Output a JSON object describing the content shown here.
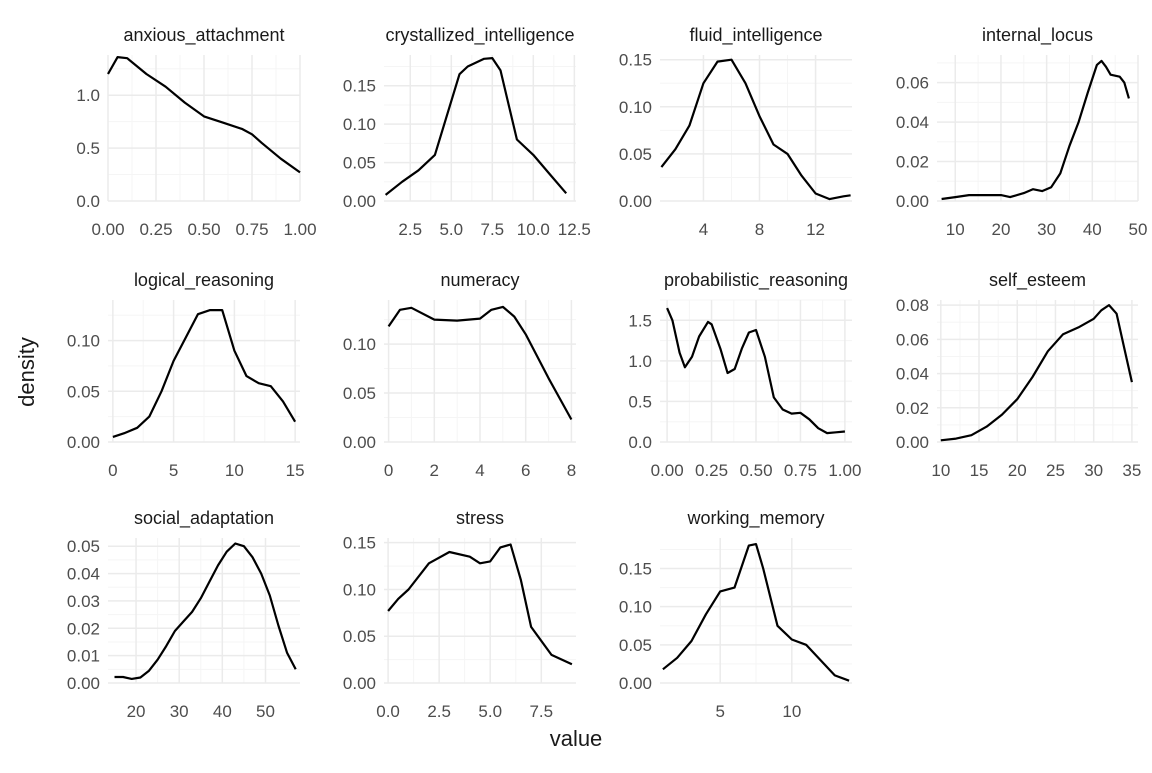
{
  "axis_titles": {
    "x": "value",
    "y": "density"
  },
  "colors": {
    "line": "#000000",
    "grid_major": "#ebebeb",
    "grid_minor": "#f5f5f5",
    "text": "#4d4d4d",
    "strip_text": "#1a1a1a"
  },
  "chart_data": [
    {
      "type": "line",
      "facet": "anxious_attachment",
      "xlim": [
        0,
        1
      ],
      "ylim": [
        0,
        1.38
      ],
      "xticks": [
        0,
        0.25,
        0.5,
        0.75,
        1
      ],
      "xtick_labels": [
        "0.00",
        "0.25",
        "0.50",
        "0.75",
        "1.00"
      ],
      "yticks": [
        0,
        0.5,
        1.0
      ],
      "ytick_labels": [
        "0.0",
        "0.5",
        "1.0"
      ],
      "x": [
        0,
        0.05,
        0.1,
        0.2,
        0.3,
        0.4,
        0.5,
        0.6,
        0.7,
        0.75,
        0.8,
        0.9,
        1.0
      ],
      "y": [
        1.2,
        1.36,
        1.35,
        1.2,
        1.08,
        0.93,
        0.8,
        0.74,
        0.68,
        0.63,
        0.55,
        0.4,
        0.27
      ]
    },
    {
      "type": "line",
      "facet": "crystallized_intelligence",
      "xlim": [
        0.9,
        12.6
      ],
      "ylim": [
        0,
        0.19
      ],
      "xticks": [
        2.5,
        5,
        7.5,
        10,
        12.5
      ],
      "xtick_labels": [
        "2.5",
        "5.0",
        "7.5",
        "10.0",
        "12.5"
      ],
      "yticks": [
        0,
        0.05,
        0.1,
        0.15
      ],
      "ytick_labels": [
        "0.00",
        "0.05",
        "0.10",
        "0.15"
      ],
      "x": [
        1,
        2,
        3,
        4,
        5,
        5.5,
        6,
        7,
        7.5,
        8,
        9,
        10,
        11,
        12
      ],
      "y": [
        0.008,
        0.025,
        0.04,
        0.06,
        0.13,
        0.165,
        0.175,
        0.185,
        0.186,
        0.17,
        0.08,
        0.06,
        0.035,
        0.01
      ]
    },
    {
      "type": "line",
      "facet": "fluid_intelligence",
      "xlim": [
        0.9,
        14.6
      ],
      "ylim": [
        0,
        0.155
      ],
      "xticks": [
        4,
        8,
        12
      ],
      "xtick_labels": [
        "4",
        "8",
        "12"
      ],
      "yticks": [
        0,
        0.05,
        0.1,
        0.15
      ],
      "ytick_labels": [
        "0.00",
        "0.05",
        "0.10",
        "0.15"
      ],
      "x": [
        1,
        2,
        3,
        4,
        5,
        6,
        7,
        8,
        9,
        10,
        11,
        12,
        13,
        14,
        14.5
      ],
      "y": [
        0.036,
        0.055,
        0.08,
        0.125,
        0.148,
        0.15,
        0.125,
        0.09,
        0.06,
        0.05,
        0.027,
        0.008,
        0.002,
        0.005,
        0.006
      ]
    },
    {
      "type": "line",
      "facet": "internal_locus",
      "xlim": [
        6,
        50
      ],
      "ylim": [
        0,
        0.074
      ],
      "xticks": [
        10,
        20,
        30,
        40,
        50
      ],
      "xtick_labels": [
        "10",
        "20",
        "30",
        "40",
        "50"
      ],
      "yticks": [
        0,
        0.02,
        0.04,
        0.06
      ],
      "ytick_labels": [
        "0.00",
        "0.02",
        "0.04",
        "0.06"
      ],
      "x": [
        7,
        10,
        13,
        17,
        20,
        22,
        25,
        27,
        29,
        31,
        33,
        35,
        37,
        39,
        41,
        42,
        43,
        44,
        46,
        47,
        48
      ],
      "y": [
        0.001,
        0.002,
        0.003,
        0.003,
        0.003,
        0.002,
        0.004,
        0.006,
        0.005,
        0.007,
        0.014,
        0.028,
        0.04,
        0.055,
        0.069,
        0.071,
        0.068,
        0.064,
        0.063,
        0.06,
        0.052
      ]
    },
    {
      "type": "line",
      "facet": "logical_reasoning",
      "xlim": [
        -0.4,
        15.4
      ],
      "ylim": [
        0,
        0.14
      ],
      "xticks": [
        0,
        5,
        10,
        15
      ],
      "xtick_labels": [
        "0",
        "5",
        "10",
        "15"
      ],
      "yticks": [
        0,
        0.05,
        0.1
      ],
      "ytick_labels": [
        "0.00",
        "0.05",
        "0.10"
      ],
      "x": [
        0,
        1,
        2,
        3,
        4,
        5,
        6,
        7,
        8,
        9,
        10,
        11,
        12,
        13,
        14,
        15
      ],
      "y": [
        0.005,
        0.009,
        0.014,
        0.025,
        0.05,
        0.08,
        0.103,
        0.126,
        0.13,
        0.13,
        0.09,
        0.065,
        0.058,
        0.055,
        0.04,
        0.02
      ]
    },
    {
      "type": "line",
      "facet": "numeracy",
      "xlim": [
        -0.2,
        8.2
      ],
      "ylim": [
        0,
        0.145
      ],
      "xticks": [
        0,
        2,
        4,
        6,
        8
      ],
      "xtick_labels": [
        "0",
        "2",
        "4",
        "6",
        "8"
      ],
      "yticks": [
        0,
        0.05,
        0.1
      ],
      "ytick_labels": [
        "0.00",
        "0.05",
        "0.10"
      ],
      "x": [
        0,
        0.5,
        1,
        2,
        3,
        4,
        4.5,
        5,
        5.5,
        6,
        7,
        8
      ],
      "y": [
        0.118,
        0.135,
        0.137,
        0.125,
        0.124,
        0.126,
        0.135,
        0.138,
        0.128,
        0.11,
        0.065,
        0.023
      ]
    },
    {
      "type": "line",
      "facet": "probabilistic_reasoning",
      "xlim": [
        -0.04,
        1.04
      ],
      "ylim": [
        0,
        1.75
      ],
      "xticks": [
        0,
        0.25,
        0.5,
        0.75,
        1
      ],
      "xtick_labels": [
        "0.00",
        "0.25",
        "0.50",
        "0.75",
        "1.00"
      ],
      "yticks": [
        0,
        0.5,
        1.0,
        1.5
      ],
      "ytick_labels": [
        "0.0",
        "0.5",
        "1.0",
        "1.5"
      ],
      "x": [
        0,
        0.03,
        0.07,
        0.1,
        0.14,
        0.18,
        0.23,
        0.25,
        0.3,
        0.34,
        0.38,
        0.42,
        0.46,
        0.5,
        0.55,
        0.6,
        0.65,
        0.7,
        0.75,
        0.8,
        0.85,
        0.9,
        0.95,
        1.0
      ],
      "y": [
        1.65,
        1.5,
        1.1,
        0.92,
        1.05,
        1.3,
        1.48,
        1.45,
        1.15,
        0.85,
        0.9,
        1.15,
        1.35,
        1.38,
        1.05,
        0.55,
        0.4,
        0.35,
        0.36,
        0.28,
        0.17,
        0.11,
        0.12,
        0.13
      ]
    },
    {
      "type": "line",
      "facet": "self_esteem",
      "xlim": [
        9.5,
        35.8
      ],
      "ylim": [
        0,
        0.083
      ],
      "xticks": [
        10,
        15,
        20,
        25,
        30,
        35
      ],
      "xtick_labels": [
        "10",
        "15",
        "20",
        "25",
        "30",
        "35"
      ],
      "yticks": [
        0,
        0.02,
        0.04,
        0.06,
        0.08
      ],
      "ytick_labels": [
        "0.00",
        "0.02",
        "0.04",
        "0.06",
        "0.08"
      ],
      "x": [
        10,
        12,
        14,
        16,
        18,
        20,
        22,
        24,
        26,
        28,
        30,
        31,
        32,
        33,
        34,
        35
      ],
      "y": [
        0.001,
        0.002,
        0.004,
        0.009,
        0.016,
        0.025,
        0.038,
        0.053,
        0.063,
        0.067,
        0.072,
        0.077,
        0.08,
        0.075,
        0.055,
        0.035
      ]
    },
    {
      "type": "line",
      "facet": "social_adaptation",
      "xlim": [
        13.5,
        58
      ],
      "ylim": [
        0,
        0.053
      ],
      "xticks": [
        20,
        30,
        40,
        50
      ],
      "xtick_labels": [
        "20",
        "30",
        "40",
        "50"
      ],
      "yticks": [
        0,
        0.01,
        0.02,
        0.03,
        0.04,
        0.05
      ],
      "ytick_labels": [
        "0.00",
        "0.01",
        "0.02",
        "0.03",
        "0.04",
        "0.05"
      ],
      "x": [
        15,
        17,
        19,
        21,
        23,
        25,
        27,
        29,
        31,
        33,
        35,
        37,
        39,
        41,
        43,
        45,
        47,
        49,
        51,
        53,
        55,
        57
      ],
      "y": [
        0.0022,
        0.0022,
        0.0015,
        0.002,
        0.0045,
        0.0085,
        0.0135,
        0.019,
        0.0225,
        0.026,
        0.031,
        0.037,
        0.043,
        0.048,
        0.051,
        0.05,
        0.046,
        0.04,
        0.032,
        0.021,
        0.011,
        0.005
      ]
    },
    {
      "type": "line",
      "facet": "stress",
      "xlim": [
        -0.2,
        9.2
      ],
      "ylim": [
        0,
        0.155
      ],
      "xticks": [
        0,
        2.5,
        5,
        7.5
      ],
      "xtick_labels": [
        "0.0",
        "2.5",
        "5.0",
        "7.5"
      ],
      "yticks": [
        0,
        0.05,
        0.1,
        0.15
      ],
      "ytick_labels": [
        "0.00",
        "0.05",
        "0.10",
        "0.15"
      ],
      "x": [
        0,
        0.5,
        1,
        2,
        3,
        4,
        4.5,
        5,
        5.5,
        6,
        6.5,
        7,
        8,
        9
      ],
      "y": [
        0.077,
        0.09,
        0.1,
        0.128,
        0.14,
        0.135,
        0.128,
        0.13,
        0.145,
        0.148,
        0.11,
        0.06,
        0.03,
        0.02
      ]
    },
    {
      "type": "line",
      "facet": "working_memory",
      "xlim": [
        0.8,
        14.2
      ],
      "ylim": [
        0,
        0.19
      ],
      "xticks": [
        5,
        10
      ],
      "xtick_labels": [
        "5",
        "10"
      ],
      "yticks": [
        0,
        0.05,
        0.1,
        0.15
      ],
      "ytick_labels": [
        "0.00",
        "0.05",
        "0.10",
        "0.15"
      ],
      "x": [
        1,
        2,
        3,
        4,
        5,
        6,
        7,
        7.5,
        8,
        9,
        10,
        11,
        12,
        13,
        14
      ],
      "y": [
        0.018,
        0.033,
        0.055,
        0.09,
        0.12,
        0.125,
        0.18,
        0.182,
        0.15,
        0.075,
        0.057,
        0.05,
        0.03,
        0.01,
        0.003
      ]
    }
  ]
}
